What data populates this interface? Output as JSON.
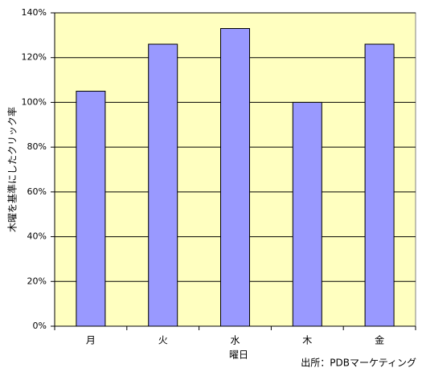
{
  "chart_data": {
    "type": "bar",
    "categories": [
      "月",
      "火",
      "水",
      "木",
      "金"
    ],
    "values": [
      105,
      126,
      133,
      100,
      126
    ],
    "color": "#9999ff",
    "ylim": [
      0,
      140
    ],
    "yticks": [
      {
        "value": 0,
        "label": "0%"
      },
      {
        "value": 20,
        "label": "20%"
      },
      {
        "value": 40,
        "label": "40%"
      },
      {
        "value": 60,
        "label": "60%"
      },
      {
        "value": 80,
        "label": "80%"
      },
      {
        "value": 100,
        "label": "100%"
      },
      {
        "value": 120,
        "label": "120%"
      },
      {
        "value": 140,
        "label": "140%"
      }
    ],
    "grid": true,
    "x_label": "曜日",
    "y_label": "木曜を基準にしたクリック率",
    "source": "出所：PDBマーケティング"
  }
}
